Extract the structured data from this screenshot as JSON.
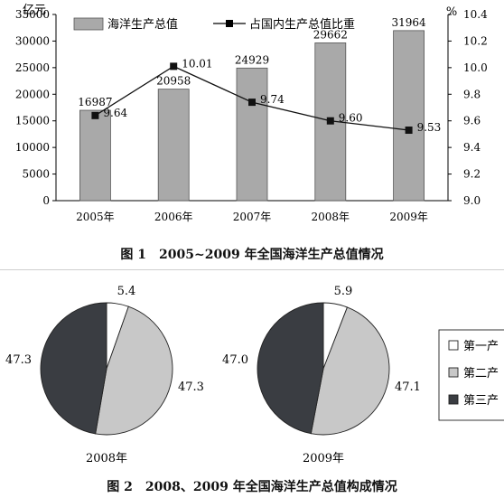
{
  "figure1": {
    "caption": "图 1　2005~2009 年全国海洋生产总值情况",
    "chart_data": {
      "type": "bar",
      "categories": [
        "2005年",
        "2006年",
        "2007年",
        "2008年",
        "2009年"
      ],
      "series": [
        {
          "name": "海洋生产总值",
          "type": "bar",
          "axis": "left",
          "values": [
            16987,
            20958,
            24929,
            29662,
            31964
          ],
          "color": "#a9a9a9"
        },
        {
          "name": "占国内生产总值比重",
          "type": "line",
          "axis": "right",
          "values": [
            9.64,
            10.01,
            9.74,
            9.6,
            9.53
          ],
          "color": "#111111"
        }
      ],
      "left_axis": {
        "unit": "亿元",
        "ylim": [
          0,
          35000
        ],
        "ticks": [
          0,
          5000,
          10000,
          15000,
          20000,
          25000,
          30000,
          35000
        ]
      },
      "right_axis": {
        "unit": "%",
        "ylim": [
          9.0,
          10.4
        ],
        "ticks": [
          "9.0",
          "9.2",
          "9.4",
          "9.6",
          "9.8",
          "10.0",
          "10.2",
          "10.4"
        ]
      },
      "data_labels_bars": [
        "16987",
        "20958",
        "24929",
        "29662",
        "31964"
      ],
      "data_labels_line": [
        "9.64",
        "10.01",
        "9.74",
        "9.60",
        "9.53"
      ],
      "legend_position": "top",
      "grid": false
    }
  },
  "figure2": {
    "caption": "图 2　2008、2009 年全国海洋生产总值构成情况",
    "chart_data": [
      {
        "type": "pie",
        "label": "2008年",
        "slices": [
          {
            "name": "第一产业",
            "value": 5.4,
            "label": "5.4",
            "color": "#ffffff"
          },
          {
            "name": "第二产业",
            "value": 47.3,
            "label": "47.3",
            "color": "#c8c8c8"
          },
          {
            "name": "第三产业",
            "value": 47.3,
            "label": "47.3",
            "color": "#3a3d42"
          }
        ]
      },
      {
        "type": "pie",
        "label": "2009年",
        "slices": [
          {
            "name": "第一产业",
            "value": 5.9,
            "label": "5.9",
            "color": "#ffffff"
          },
          {
            "name": "第二产业",
            "value": 47.1,
            "label": "47.1",
            "color": "#c8c8c8"
          },
          {
            "name": "第三产业",
            "value": 47.0,
            "label": "47.0",
            "color": "#3a3d42"
          }
        ]
      }
    ],
    "legend": [
      "第一产",
      "第二产",
      "第三产"
    ],
    "legend_position": "right"
  }
}
